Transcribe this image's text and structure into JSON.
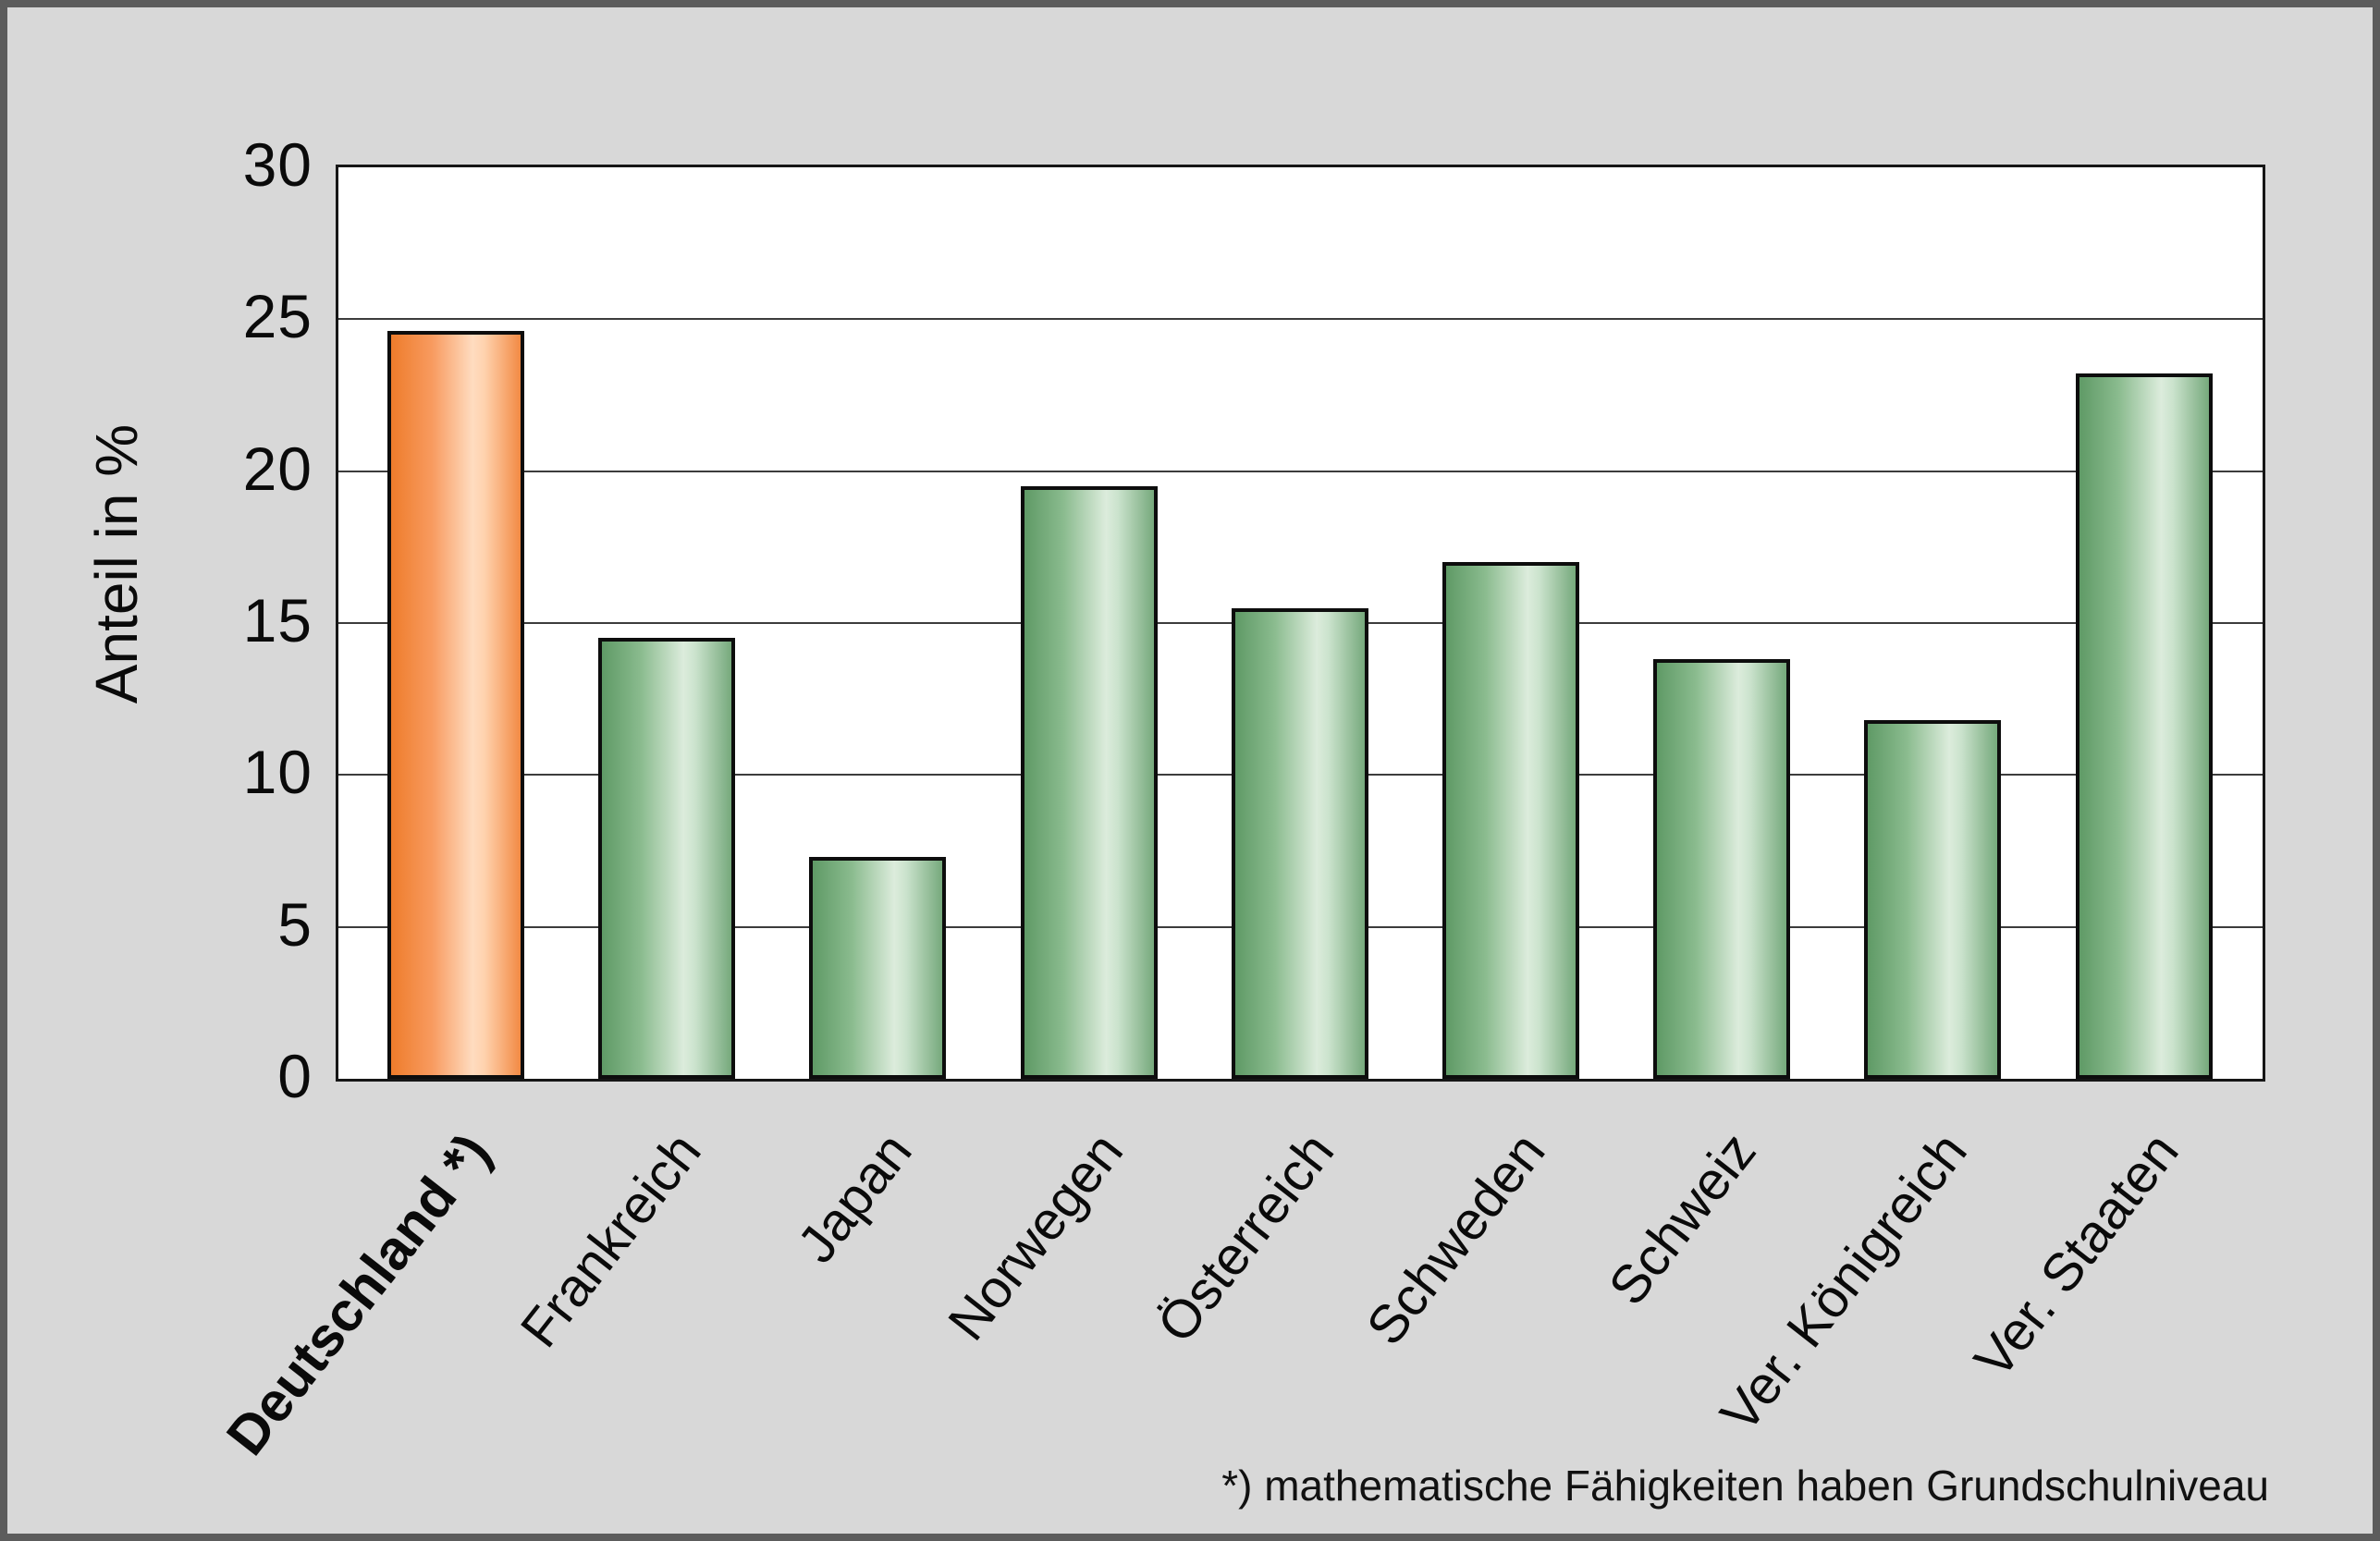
{
  "chart_data": {
    "type": "bar",
    "categories": [
      "Deutschland *)",
      "Frankreich",
      "Japan",
      "Norwegen",
      "Österreich",
      "Schweden",
      "Schweiz",
      "Ver. Königreich",
      "Ver. Staaten"
    ],
    "values": [
      24.6,
      14.5,
      7.3,
      19.5,
      15.5,
      17.0,
      13.8,
      11.8,
      23.2
    ],
    "highlight_index": 0,
    "highlight_category_bold": true,
    "title": "",
    "xlabel": "",
    "ylabel": "Anteil in %",
    "ylim": [
      0,
      30
    ],
    "yticks": [
      30,
      25,
      20,
      15,
      10,
      5,
      0
    ],
    "grid": true,
    "legend": "none",
    "bar_colors": {
      "highlight": "#f08030",
      "default": "#8fbc92"
    }
  },
  "footnote": "*) mathematische Fähigkeiten haben Grundschulniveau",
  "colors": {
    "background": "#d8d8d8",
    "frame": "#5c5c5c",
    "plot_background": "#ffffff",
    "gridline": "#3c3c3c",
    "bar_border": "#0d0d0d",
    "text": "#0a0a0a"
  }
}
